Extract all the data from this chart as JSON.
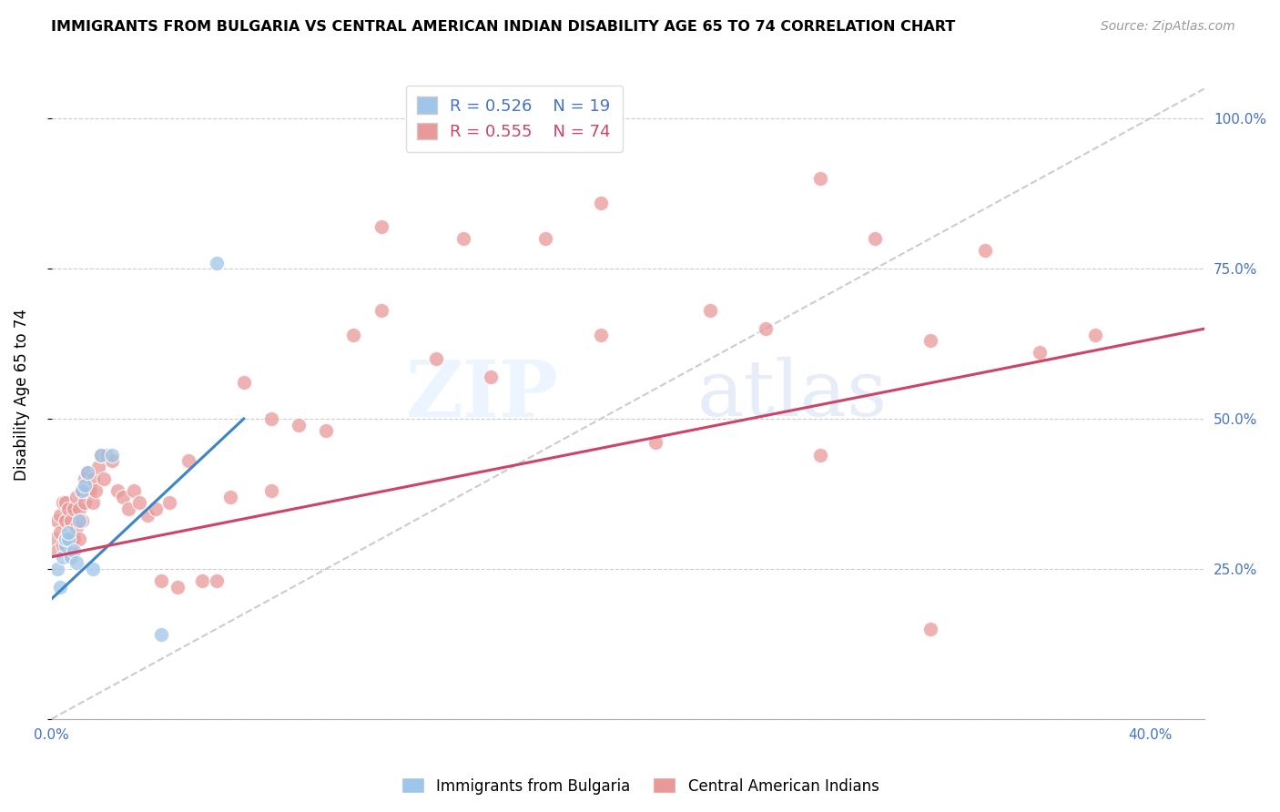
{
  "title": "IMMIGRANTS FROM BULGARIA VS CENTRAL AMERICAN INDIAN DISABILITY AGE 65 TO 74 CORRELATION CHART",
  "source": "Source: ZipAtlas.com",
  "ylabel": "Disability Age 65 to 74",
  "xlim": [
    0.0,
    0.42
  ],
  "ylim": [
    0.0,
    1.08
  ],
  "yticks": [
    0.0,
    0.25,
    0.5,
    0.75,
    1.0
  ],
  "ytick_labels": [
    "",
    "25.0%",
    "50.0%",
    "75.0%",
    "100.0%"
  ],
  "xticks": [
    0.0,
    0.1,
    0.2,
    0.3,
    0.4
  ],
  "xtick_labels": [
    "0.0%",
    "",
    "",
    "",
    "40.0%"
  ],
  "bg_color": "#ffffff",
  "watermark_zip": "ZIP",
  "watermark_atlas": "atlas",
  "color_bulgaria": "#9fc5e8",
  "color_caindian": "#ea9999",
  "color_bulgaria_line": "#3d85c8",
  "color_caindian_line": "#cc4466",
  "diag_line_color": "#cccccc",
  "legend_r1": "R = 0.526",
  "legend_n1": "N = 19",
  "legend_r2": "R = 0.555",
  "legend_n2": "N = 74",
  "legend_color1": "#4472c4",
  "legend_color2": "#cc4466",
  "bulgaria_x": [
    0.002,
    0.003,
    0.004,
    0.005,
    0.005,
    0.006,
    0.006,
    0.007,
    0.008,
    0.009,
    0.01,
    0.011,
    0.012,
    0.013,
    0.015,
    0.018,
    0.022,
    0.04,
    0.06
  ],
  "bulgaria_y": [
    0.25,
    0.22,
    0.27,
    0.29,
    0.3,
    0.3,
    0.31,
    0.27,
    0.28,
    0.26,
    0.33,
    0.38,
    0.39,
    0.41,
    0.25,
    0.44,
    0.44,
    0.14,
    0.76
  ],
  "caindian_x": [
    0.001,
    0.002,
    0.002,
    0.003,
    0.003,
    0.004,
    0.004,
    0.005,
    0.005,
    0.005,
    0.006,
    0.006,
    0.007,
    0.007,
    0.008,
    0.008,
    0.009,
    0.009,
    0.01,
    0.01,
    0.011,
    0.011,
    0.012,
    0.012,
    0.013,
    0.013,
    0.014,
    0.015,
    0.015,
    0.016,
    0.017,
    0.018,
    0.019,
    0.02,
    0.022,
    0.024,
    0.026,
    0.028,
    0.03,
    0.032,
    0.035,
    0.038,
    0.04,
    0.043,
    0.046,
    0.05,
    0.055,
    0.06,
    0.065,
    0.07,
    0.08,
    0.09,
    0.1,
    0.11,
    0.12,
    0.14,
    0.16,
    0.18,
    0.2,
    0.22,
    0.24,
    0.26,
    0.28,
    0.3,
    0.32,
    0.34,
    0.36,
    0.38,
    0.32,
    0.28,
    0.2,
    0.15,
    0.12,
    0.08
  ],
  "caindian_y": [
    0.3,
    0.28,
    0.33,
    0.31,
    0.34,
    0.29,
    0.36,
    0.3,
    0.33,
    0.36,
    0.3,
    0.35,
    0.29,
    0.33,
    0.3,
    0.35,
    0.32,
    0.37,
    0.3,
    0.35,
    0.33,
    0.38,
    0.36,
    0.4,
    0.38,
    0.41,
    0.38,
    0.36,
    0.4,
    0.38,
    0.42,
    0.44,
    0.4,
    0.44,
    0.43,
    0.38,
    0.37,
    0.35,
    0.38,
    0.36,
    0.34,
    0.35,
    0.23,
    0.36,
    0.22,
    0.43,
    0.23,
    0.23,
    0.37,
    0.56,
    0.38,
    0.49,
    0.48,
    0.64,
    0.68,
    0.6,
    0.57,
    0.8,
    0.64,
    0.46,
    0.68,
    0.65,
    0.44,
    0.8,
    0.63,
    0.78,
    0.61,
    0.64,
    0.15,
    0.9,
    0.86,
    0.8,
    0.82,
    0.5
  ],
  "bulgaria_trend_x": [
    0.0,
    0.07
  ],
  "bulgaria_trend_y": [
    0.2,
    0.5
  ],
  "caindian_trend_x": [
    0.0,
    0.42
  ],
  "caindian_trend_y": [
    0.27,
    0.65
  ]
}
